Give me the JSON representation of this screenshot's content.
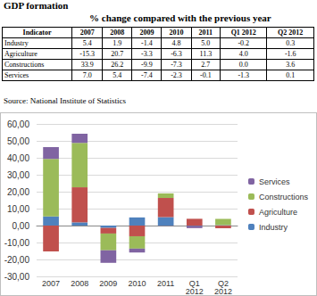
{
  "header": {
    "title": "GDP formation",
    "subtitle": "% change compared with the previous year"
  },
  "table": {
    "columns": [
      "Indicator",
      "2007",
      "2008",
      "2009",
      "2010",
      "2011",
      "Q1 2012",
      "Q2 2012"
    ],
    "rows": [
      [
        "Industry",
        "5.4",
        "1.9",
        "-1.4",
        "4.8",
        "5.0",
        "-0.2",
        "0.3"
      ],
      [
        "Agriculture",
        "-15.3",
        "20.7",
        "-3.3",
        "-6.3",
        "11.3",
        "4.0",
        "-1.6"
      ],
      [
        "Constructions",
        "33.9",
        "26.2",
        "-9.9",
        "-7.3",
        "2.7",
        "0.0",
        "3.6"
      ],
      [
        "Services",
        "7.0",
        "5.4",
        "-7.4",
        "-2.3",
        "-0.1",
        "-1.3",
        "0.1"
      ]
    ]
  },
  "source": "Source: National Institute of Statistics",
  "chart_data": {
    "type": "bar",
    "stacked": true,
    "categories": [
      "2007",
      "2008",
      "2009",
      "2010",
      "2011",
      "Q1 2012",
      "Q2 2012"
    ],
    "series": [
      {
        "name": "Industry",
        "color": "#4f81bd",
        "values": [
          5.4,
          1.9,
          -1.4,
          4.8,
          5.0,
          -0.2,
          0.3
        ]
      },
      {
        "name": "Agriculture",
        "color": "#c0504d",
        "values": [
          -15.3,
          20.7,
          -3.3,
          -6.3,
          11.3,
          4.0,
          -1.6
        ]
      },
      {
        "name": "Constructions",
        "color": "#9bbb59",
        "values": [
          33.9,
          26.2,
          -9.9,
          -7.3,
          2.7,
          0.0,
          3.6
        ]
      },
      {
        "name": "Services",
        "color": "#8064a2",
        "values": [
          7.0,
          5.4,
          -7.4,
          -2.3,
          -0.1,
          -1.3,
          0.1
        ]
      }
    ],
    "ylim": [
      -30,
      60
    ],
    "yticks": [
      {
        "value": -30,
        "label": "-30,00"
      },
      {
        "value": -20,
        "label": "-20,00"
      },
      {
        "value": -10,
        "label": "-10,00"
      },
      {
        "value": 0,
        "label": "0,00"
      },
      {
        "value": 10,
        "label": "10,00"
      },
      {
        "value": 20,
        "label": "20,00"
      },
      {
        "value": 30,
        "label": "30,00"
      },
      {
        "value": 40,
        "label": "40,00"
      },
      {
        "value": 50,
        "label": "50,00"
      },
      {
        "value": 60,
        "label": "60,00"
      }
    ],
    "grid": true,
    "legend": "right"
  }
}
